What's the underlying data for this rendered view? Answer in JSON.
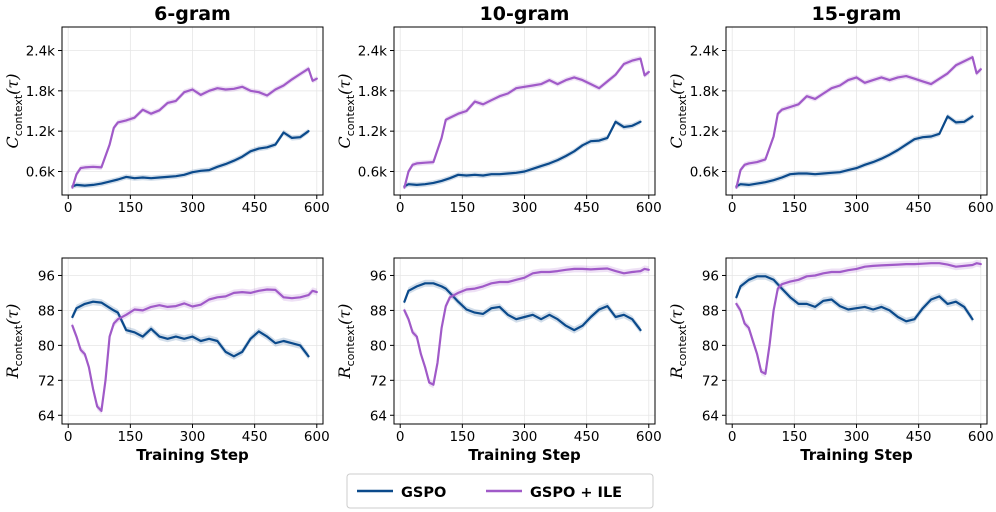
{
  "colors": {
    "gspo": "#0b4a8b",
    "gspo_ile": "#a05ac8",
    "grid": "#e6e6e6",
    "axis": "#000000"
  },
  "legend": {
    "entries": [
      "GSPO",
      "GSPO + ILE"
    ],
    "position": "bottom-center"
  },
  "chart_data": [
    {
      "type": "line",
      "title": "6-gram",
      "xlabel": "",
      "ylabel": "C_context(τ)",
      "ylabel_main": "C",
      "ylabel_sub": "context",
      "ylabel_arg": "(τ)",
      "xlim": [
        -15,
        615
      ],
      "ylim": [
        250,
        2750
      ],
      "xticks": [
        0,
        150,
        300,
        450,
        600
      ],
      "xtick_labels": [
        "0",
        "150",
        "300",
        "450",
        "600"
      ],
      "yticks": [
        600,
        1200,
        1800,
        2400
      ],
      "ytick_labels": [
        "0.6k",
        "1.2k",
        "1.8k",
        "2.4k"
      ],
      "series": [
        {
          "name": "GSPO",
          "x": [
            10,
            20,
            40,
            60,
            80,
            100,
            120,
            140,
            160,
            180,
            200,
            220,
            240,
            260,
            280,
            300,
            320,
            340,
            360,
            380,
            400,
            420,
            440,
            460,
            480,
            500,
            520,
            540,
            560,
            580
          ],
          "y": [
            380,
            400,
            390,
            400,
            420,
            450,
            480,
            520,
            500,
            510,
            500,
            510,
            520,
            530,
            550,
            590,
            610,
            620,
            670,
            710,
            760,
            820,
            900,
            940,
            960,
            1000,
            1180,
            1100,
            1110,
            1200
          ]
        },
        {
          "name": "GSPO + ILE",
          "x": [
            10,
            20,
            30,
            40,
            60,
            80,
            100,
            110,
            120,
            140,
            160,
            180,
            200,
            220,
            240,
            260,
            280,
            300,
            320,
            340,
            360,
            380,
            400,
            420,
            440,
            460,
            480,
            500,
            520,
            540,
            560,
            580,
            590,
            600
          ],
          "y": [
            360,
            560,
            650,
            660,
            670,
            660,
            1000,
            1250,
            1330,
            1360,
            1400,
            1520,
            1460,
            1510,
            1620,
            1650,
            1780,
            1820,
            1740,
            1800,
            1840,
            1820,
            1830,
            1860,
            1800,
            1780,
            1730,
            1820,
            1880,
            1970,
            2050,
            2130,
            1950,
            1980
          ]
        }
      ]
    },
    {
      "type": "line",
      "title": "10-gram",
      "xlabel": "",
      "ylabel": "C_context(τ)",
      "ylabel_main": "C",
      "ylabel_sub": "context",
      "ylabel_arg": "(τ)",
      "xlim": [
        -15,
        615
      ],
      "ylim": [
        250,
        2750
      ],
      "xticks": [
        0,
        150,
        300,
        450,
        600
      ],
      "xtick_labels": [
        "0",
        "150",
        "300",
        "450",
        "600"
      ],
      "yticks": [
        600,
        1200,
        1800,
        2400
      ],
      "ytick_labels": [
        "0.6k",
        "1.2k",
        "1.8k",
        "2.4k"
      ],
      "series": [
        {
          "name": "GSPO",
          "x": [
            10,
            20,
            40,
            60,
            80,
            100,
            120,
            140,
            160,
            180,
            200,
            220,
            240,
            260,
            280,
            300,
            320,
            340,
            360,
            380,
            400,
            420,
            440,
            460,
            480,
            500,
            520,
            540,
            560,
            580
          ],
          "y": [
            380,
            410,
            400,
            410,
            430,
            460,
            500,
            550,
            540,
            550,
            540,
            560,
            560,
            570,
            580,
            600,
            640,
            680,
            720,
            770,
            830,
            900,
            990,
            1050,
            1060,
            1100,
            1340,
            1260,
            1280,
            1340
          ]
        },
        {
          "name": "GSPO + ILE",
          "x": [
            10,
            20,
            30,
            40,
            60,
            80,
            100,
            110,
            120,
            140,
            160,
            180,
            200,
            220,
            240,
            260,
            280,
            300,
            320,
            340,
            360,
            380,
            400,
            420,
            440,
            460,
            480,
            500,
            520,
            540,
            560,
            580,
            590,
            600
          ],
          "y": [
            360,
            600,
            700,
            720,
            730,
            740,
            1100,
            1370,
            1400,
            1460,
            1500,
            1640,
            1600,
            1660,
            1720,
            1760,
            1840,
            1860,
            1880,
            1900,
            1960,
            1900,
            1960,
            2000,
            1960,
            1900,
            1840,
            1940,
            2040,
            2200,
            2250,
            2280,
            2030,
            2080
          ]
        }
      ]
    },
    {
      "type": "line",
      "title": "15-gram",
      "xlabel": "",
      "ylabel": "C_context(τ)",
      "ylabel_main": "C",
      "ylabel_sub": "context",
      "ylabel_arg": "(τ)",
      "xlim": [
        -15,
        615
      ],
      "ylim": [
        250,
        2750
      ],
      "xticks": [
        0,
        150,
        300,
        450,
        600
      ],
      "xtick_labels": [
        "0",
        "150",
        "300",
        "450",
        "600"
      ],
      "yticks": [
        600,
        1200,
        1800,
        2400
      ],
      "ytick_labels": [
        "0.6k",
        "1.2k",
        "1.8k",
        "2.4k"
      ],
      "series": [
        {
          "name": "GSPO",
          "x": [
            10,
            20,
            40,
            60,
            80,
            100,
            120,
            140,
            160,
            180,
            200,
            220,
            240,
            260,
            280,
            300,
            320,
            340,
            360,
            380,
            400,
            420,
            440,
            460,
            480,
            500,
            520,
            540,
            560,
            580
          ],
          "y": [
            380,
            410,
            400,
            420,
            440,
            470,
            510,
            560,
            570,
            570,
            560,
            570,
            580,
            590,
            620,
            650,
            700,
            740,
            790,
            850,
            920,
            1000,
            1080,
            1110,
            1120,
            1160,
            1420,
            1330,
            1340,
            1420
          ]
        },
        {
          "name": "GSPO + ILE",
          "x": [
            10,
            20,
            30,
            40,
            60,
            80,
            100,
            110,
            120,
            140,
            160,
            180,
            200,
            220,
            240,
            260,
            280,
            300,
            320,
            340,
            360,
            380,
            400,
            420,
            440,
            460,
            480,
            500,
            520,
            540,
            560,
            580,
            590,
            600
          ],
          "y": [
            360,
            620,
            700,
            720,
            740,
            780,
            1120,
            1460,
            1520,
            1560,
            1600,
            1720,
            1680,
            1760,
            1840,
            1880,
            1960,
            2000,
            1920,
            1960,
            2000,
            1960,
            2000,
            2020,
            1980,
            1940,
            1900,
            1980,
            2060,
            2180,
            2240,
            2300,
            2060,
            2120
          ]
        }
      ]
    },
    {
      "type": "line",
      "title": "",
      "xlabel": "Training Step",
      "ylabel": "R_context(τ)",
      "ylabel_main": "R",
      "ylabel_sub": "context",
      "ylabel_arg": "(τ)",
      "xlim": [
        -15,
        615
      ],
      "ylim": [
        62,
        100
      ],
      "xticks": [
        0,
        150,
        300,
        450,
        600
      ],
      "xtick_labels": [
        "0",
        "150",
        "300",
        "450",
        "600"
      ],
      "yticks": [
        64,
        72,
        80,
        88,
        96
      ],
      "ytick_labels": [
        "64",
        "72",
        "80",
        "88",
        "96"
      ],
      "series": [
        {
          "name": "GSPO",
          "x": [
            10,
            20,
            40,
            60,
            80,
            100,
            110,
            120,
            140,
            160,
            180,
            200,
            220,
            240,
            260,
            280,
            300,
            320,
            340,
            360,
            380,
            400,
            420,
            440,
            460,
            480,
            500,
            520,
            540,
            560,
            580
          ],
          "y": [
            86.5,
            88.5,
            89.5,
            90,
            89.8,
            88.6,
            88,
            87.5,
            83.5,
            83,
            82,
            83.8,
            82,
            81.5,
            82,
            81.5,
            82,
            81,
            81.5,
            81,
            78.5,
            77.5,
            78.5,
            81.5,
            83.2,
            82,
            80.5,
            81,
            80.5,
            80,
            77.5
          ]
        },
        {
          "name": "GSPO + ILE",
          "x": [
            10,
            20,
            30,
            40,
            50,
            60,
            70,
            80,
            90,
            100,
            110,
            120,
            140,
            160,
            180,
            200,
            220,
            240,
            260,
            280,
            300,
            320,
            340,
            360,
            380,
            400,
            420,
            440,
            460,
            480,
            500,
            520,
            540,
            560,
            580,
            590,
            600
          ],
          "y": [
            84.5,
            82,
            79,
            78,
            75,
            70,
            66,
            65,
            72,
            82,
            85,
            86,
            87,
            88.2,
            88,
            88.8,
            89.2,
            88.8,
            89,
            89.6,
            88.9,
            89.3,
            90.5,
            91,
            91.2,
            92,
            92.2,
            92,
            92.5,
            92.8,
            92.7,
            91,
            90.8,
            91,
            91.5,
            92.5,
            92.2
          ]
        }
      ]
    },
    {
      "type": "line",
      "title": "",
      "xlabel": "Training Step",
      "ylabel": "R_context(τ)",
      "ylabel_main": "R",
      "ylabel_sub": "context",
      "ylabel_arg": "(τ)",
      "xlim": [
        -15,
        615
      ],
      "ylim": [
        62,
        100
      ],
      "xticks": [
        0,
        150,
        300,
        450,
        600
      ],
      "xtick_labels": [
        "0",
        "150",
        "300",
        "450",
        "600"
      ],
      "yticks": [
        64,
        72,
        80,
        88,
        96
      ],
      "ytick_labels": [
        "64",
        "72",
        "80",
        "88",
        "96"
      ],
      "series": [
        {
          "name": "GSPO",
          "x": [
            10,
            20,
            40,
            60,
            80,
            100,
            110,
            120,
            140,
            160,
            180,
            200,
            220,
            240,
            260,
            280,
            300,
            320,
            340,
            360,
            380,
            400,
            420,
            440,
            460,
            480,
            500,
            520,
            540,
            560,
            580
          ],
          "y": [
            90,
            92.5,
            93.5,
            94.2,
            94.2,
            93.5,
            93,
            92,
            90,
            88.2,
            87.5,
            87.2,
            88.5,
            88.8,
            87,
            86,
            86.5,
            87,
            86,
            87,
            86,
            84.5,
            83.5,
            84.5,
            86.5,
            88.2,
            89,
            86.5,
            87,
            86,
            83.5
          ]
        },
        {
          "name": "GSPO + ILE",
          "x": [
            10,
            20,
            30,
            40,
            50,
            60,
            70,
            80,
            90,
            100,
            110,
            120,
            140,
            160,
            180,
            200,
            220,
            240,
            260,
            280,
            300,
            320,
            340,
            360,
            380,
            400,
            420,
            440,
            460,
            480,
            500,
            520,
            540,
            560,
            580,
            590,
            600
          ],
          "y": [
            88,
            86,
            83,
            82,
            78,
            75,
            71.5,
            71,
            76,
            84,
            89,
            91,
            92,
            92.8,
            93,
            93.5,
            94.2,
            94.5,
            94.5,
            95,
            95.5,
            96.5,
            96.8,
            96.8,
            97,
            97.3,
            97.5,
            97.5,
            97.4,
            97.5,
            97.6,
            97,
            96.5,
            96.8,
            97,
            97.5,
            97.3
          ]
        }
      ]
    },
    {
      "type": "line",
      "title": "",
      "xlabel": "Training Step",
      "ylabel": "R_context(τ)",
      "ylabel_main": "R",
      "ylabel_sub": "context",
      "ylabel_arg": "(τ)",
      "xlim": [
        -15,
        615
      ],
      "ylim": [
        62,
        100
      ],
      "xticks": [
        0,
        150,
        300,
        450,
        600
      ],
      "xtick_labels": [
        "0",
        "150",
        "300",
        "450",
        "600"
      ],
      "yticks": [
        64,
        72,
        80,
        88,
        96
      ],
      "ytick_labels": [
        "64",
        "72",
        "80",
        "88",
        "96"
      ],
      "series": [
        {
          "name": "GSPO",
          "x": [
            10,
            20,
            40,
            60,
            80,
            100,
            110,
            120,
            140,
            160,
            180,
            200,
            220,
            240,
            260,
            280,
            300,
            320,
            340,
            360,
            380,
            400,
            420,
            440,
            460,
            480,
            500,
            520,
            540,
            560,
            580
          ],
          "y": [
            91,
            93.5,
            95,
            95.8,
            95.8,
            95,
            94,
            93,
            91,
            89.5,
            89.5,
            88.8,
            90.2,
            90.5,
            89,
            88.2,
            88.5,
            88.8,
            88.2,
            88.8,
            88,
            86.5,
            85.5,
            86,
            88.5,
            90.5,
            91.2,
            89.5,
            90,
            88.8,
            86
          ]
        },
        {
          "name": "GSPO + ILE",
          "x": [
            10,
            20,
            30,
            40,
            50,
            60,
            70,
            80,
            90,
            100,
            110,
            120,
            140,
            160,
            180,
            200,
            220,
            240,
            260,
            280,
            300,
            320,
            340,
            360,
            380,
            400,
            420,
            440,
            460,
            480,
            500,
            520,
            540,
            560,
            580,
            590,
            600
          ],
          "y": [
            89.5,
            88,
            85,
            84,
            81,
            78,
            74,
            73.5,
            80,
            88,
            93,
            94,
            94.6,
            95,
            95.8,
            96,
            96.5,
            96.8,
            96.8,
            97.2,
            97.5,
            98,
            98.2,
            98.3,
            98.4,
            98.5,
            98.6,
            98.6,
            98.7,
            98.8,
            98.8,
            98.5,
            98,
            98.2,
            98.4,
            98.8,
            98.6
          ]
        }
      ]
    }
  ]
}
